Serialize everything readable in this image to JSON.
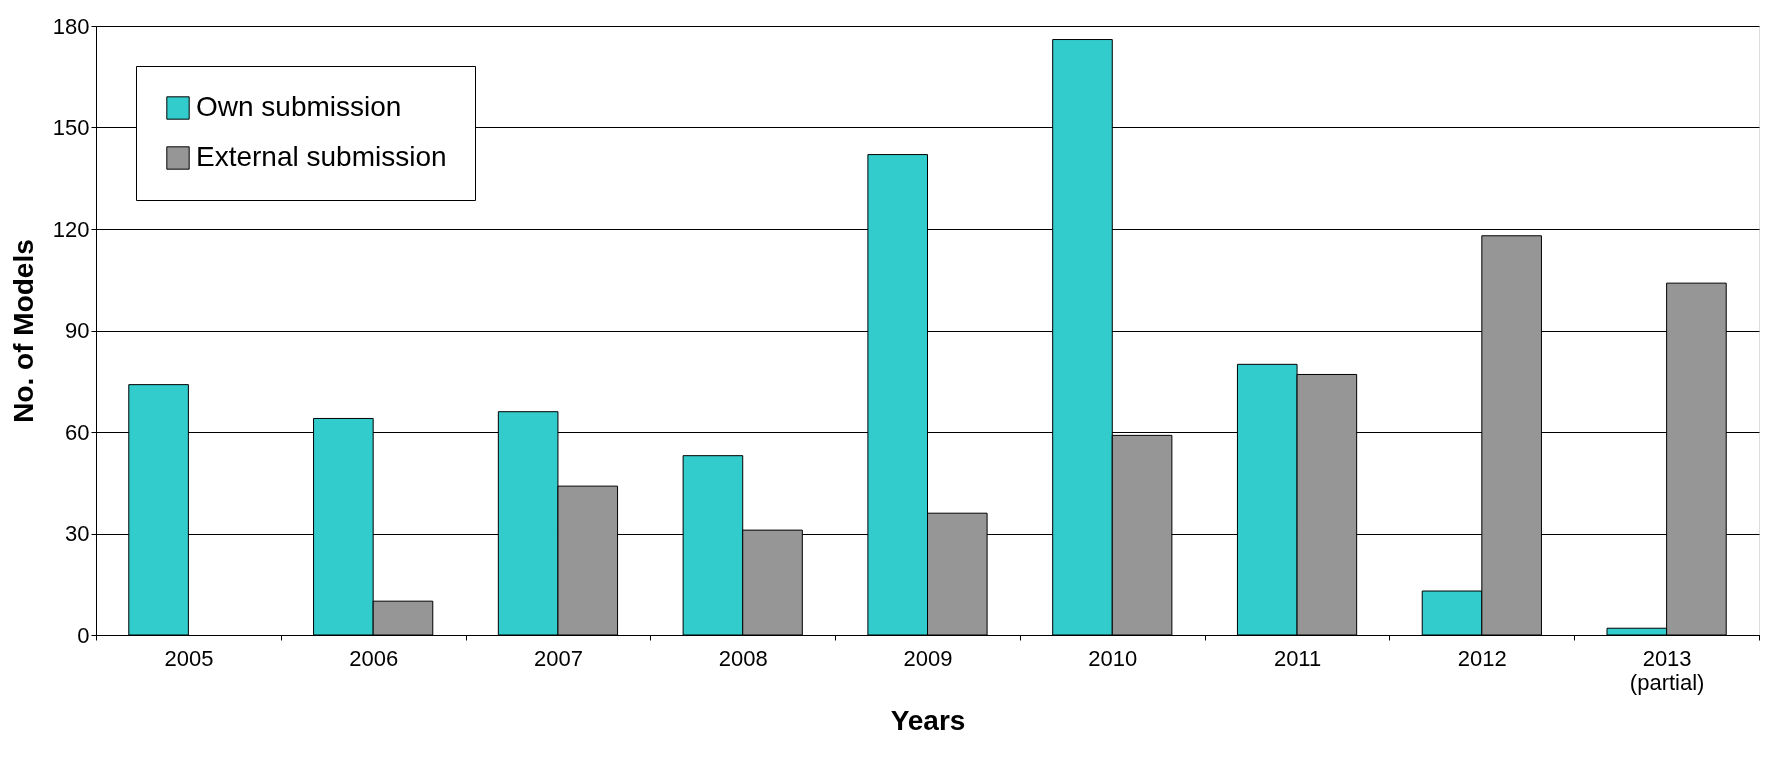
{
  "chart_data": {
    "type": "bar",
    "xlabel": "Years",
    "ylabel": "No. of Models",
    "categories": [
      "2005",
      "2006",
      "2007",
      "2008",
      "2009",
      "2010",
      "2011",
      "2012",
      "2013\n(partial)"
    ],
    "series": [
      {
        "name": "Own submission",
        "color": "#33cccc",
        "values": [
          74,
          64,
          66,
          53,
          142,
          176,
          80,
          13,
          2
        ]
      },
      {
        "name": "External submission",
        "color": "#969696",
        "values": [
          null,
          10,
          44,
          31,
          36,
          59,
          77,
          118,
          104
        ]
      }
    ],
    "ylim": [
      0,
      180
    ],
    "yticks": [
      0,
      30,
      60,
      90,
      120,
      150,
      180
    ],
    "grid": "y",
    "legend": "top left"
  }
}
